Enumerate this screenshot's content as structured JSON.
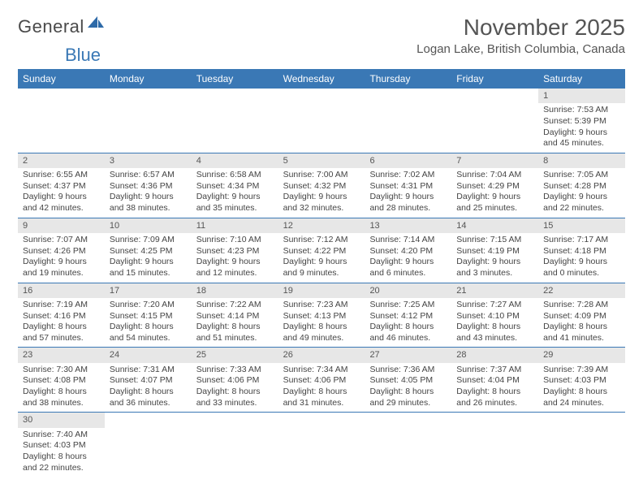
{
  "logo": {
    "text_general": "General",
    "text_blue": "Blue"
  },
  "title": "November 2025",
  "location": "Logan Lake, British Columbia, Canada",
  "colors": {
    "header_bg": "#3a78b5",
    "header_text": "#ffffff",
    "daynum_bg": "#e7e7e7",
    "row_border": "#3a78b5",
    "body_text": "#444444",
    "title_text": "#555555"
  },
  "typography": {
    "title_fontsize": 28,
    "location_fontsize": 15,
    "header_fontsize": 12,
    "cell_fontsize": 10.5,
    "daynum_fontsize": 11
  },
  "day_headers": [
    "Sunday",
    "Monday",
    "Tuesday",
    "Wednesday",
    "Thursday",
    "Friday",
    "Saturday"
  ],
  "weeks": [
    [
      null,
      null,
      null,
      null,
      null,
      null,
      {
        "n": "1",
        "sunrise": "Sunrise: 7:53 AM",
        "sunset": "Sunset: 5:39 PM",
        "daylight": "Daylight: 9 hours and 45 minutes."
      }
    ],
    [
      {
        "n": "2",
        "sunrise": "Sunrise: 6:55 AM",
        "sunset": "Sunset: 4:37 PM",
        "daylight": "Daylight: 9 hours and 42 minutes."
      },
      {
        "n": "3",
        "sunrise": "Sunrise: 6:57 AM",
        "sunset": "Sunset: 4:36 PM",
        "daylight": "Daylight: 9 hours and 38 minutes."
      },
      {
        "n": "4",
        "sunrise": "Sunrise: 6:58 AM",
        "sunset": "Sunset: 4:34 PM",
        "daylight": "Daylight: 9 hours and 35 minutes."
      },
      {
        "n": "5",
        "sunrise": "Sunrise: 7:00 AM",
        "sunset": "Sunset: 4:32 PM",
        "daylight": "Daylight: 9 hours and 32 minutes."
      },
      {
        "n": "6",
        "sunrise": "Sunrise: 7:02 AM",
        "sunset": "Sunset: 4:31 PM",
        "daylight": "Daylight: 9 hours and 28 minutes."
      },
      {
        "n": "7",
        "sunrise": "Sunrise: 7:04 AM",
        "sunset": "Sunset: 4:29 PM",
        "daylight": "Daylight: 9 hours and 25 minutes."
      },
      {
        "n": "8",
        "sunrise": "Sunrise: 7:05 AM",
        "sunset": "Sunset: 4:28 PM",
        "daylight": "Daylight: 9 hours and 22 minutes."
      }
    ],
    [
      {
        "n": "9",
        "sunrise": "Sunrise: 7:07 AM",
        "sunset": "Sunset: 4:26 PM",
        "daylight": "Daylight: 9 hours and 19 minutes."
      },
      {
        "n": "10",
        "sunrise": "Sunrise: 7:09 AM",
        "sunset": "Sunset: 4:25 PM",
        "daylight": "Daylight: 9 hours and 15 minutes."
      },
      {
        "n": "11",
        "sunrise": "Sunrise: 7:10 AM",
        "sunset": "Sunset: 4:23 PM",
        "daylight": "Daylight: 9 hours and 12 minutes."
      },
      {
        "n": "12",
        "sunrise": "Sunrise: 7:12 AM",
        "sunset": "Sunset: 4:22 PM",
        "daylight": "Daylight: 9 hours and 9 minutes."
      },
      {
        "n": "13",
        "sunrise": "Sunrise: 7:14 AM",
        "sunset": "Sunset: 4:20 PM",
        "daylight": "Daylight: 9 hours and 6 minutes."
      },
      {
        "n": "14",
        "sunrise": "Sunrise: 7:15 AM",
        "sunset": "Sunset: 4:19 PM",
        "daylight": "Daylight: 9 hours and 3 minutes."
      },
      {
        "n": "15",
        "sunrise": "Sunrise: 7:17 AM",
        "sunset": "Sunset: 4:18 PM",
        "daylight": "Daylight: 9 hours and 0 minutes."
      }
    ],
    [
      {
        "n": "16",
        "sunrise": "Sunrise: 7:19 AM",
        "sunset": "Sunset: 4:16 PM",
        "daylight": "Daylight: 8 hours and 57 minutes."
      },
      {
        "n": "17",
        "sunrise": "Sunrise: 7:20 AM",
        "sunset": "Sunset: 4:15 PM",
        "daylight": "Daylight: 8 hours and 54 minutes."
      },
      {
        "n": "18",
        "sunrise": "Sunrise: 7:22 AM",
        "sunset": "Sunset: 4:14 PM",
        "daylight": "Daylight: 8 hours and 51 minutes."
      },
      {
        "n": "19",
        "sunrise": "Sunrise: 7:23 AM",
        "sunset": "Sunset: 4:13 PM",
        "daylight": "Daylight: 8 hours and 49 minutes."
      },
      {
        "n": "20",
        "sunrise": "Sunrise: 7:25 AM",
        "sunset": "Sunset: 4:12 PM",
        "daylight": "Daylight: 8 hours and 46 minutes."
      },
      {
        "n": "21",
        "sunrise": "Sunrise: 7:27 AM",
        "sunset": "Sunset: 4:10 PM",
        "daylight": "Daylight: 8 hours and 43 minutes."
      },
      {
        "n": "22",
        "sunrise": "Sunrise: 7:28 AM",
        "sunset": "Sunset: 4:09 PM",
        "daylight": "Daylight: 8 hours and 41 minutes."
      }
    ],
    [
      {
        "n": "23",
        "sunrise": "Sunrise: 7:30 AM",
        "sunset": "Sunset: 4:08 PM",
        "daylight": "Daylight: 8 hours and 38 minutes."
      },
      {
        "n": "24",
        "sunrise": "Sunrise: 7:31 AM",
        "sunset": "Sunset: 4:07 PM",
        "daylight": "Daylight: 8 hours and 36 minutes."
      },
      {
        "n": "25",
        "sunrise": "Sunrise: 7:33 AM",
        "sunset": "Sunset: 4:06 PM",
        "daylight": "Daylight: 8 hours and 33 minutes."
      },
      {
        "n": "26",
        "sunrise": "Sunrise: 7:34 AM",
        "sunset": "Sunset: 4:06 PM",
        "daylight": "Daylight: 8 hours and 31 minutes."
      },
      {
        "n": "27",
        "sunrise": "Sunrise: 7:36 AM",
        "sunset": "Sunset: 4:05 PM",
        "daylight": "Daylight: 8 hours and 29 minutes."
      },
      {
        "n": "28",
        "sunrise": "Sunrise: 7:37 AM",
        "sunset": "Sunset: 4:04 PM",
        "daylight": "Daylight: 8 hours and 26 minutes."
      },
      {
        "n": "29",
        "sunrise": "Sunrise: 7:39 AM",
        "sunset": "Sunset: 4:03 PM",
        "daylight": "Daylight: 8 hours and 24 minutes."
      }
    ],
    [
      {
        "n": "30",
        "sunrise": "Sunrise: 7:40 AM",
        "sunset": "Sunset: 4:03 PM",
        "daylight": "Daylight: 8 hours and 22 minutes."
      },
      null,
      null,
      null,
      null,
      null,
      null
    ]
  ]
}
